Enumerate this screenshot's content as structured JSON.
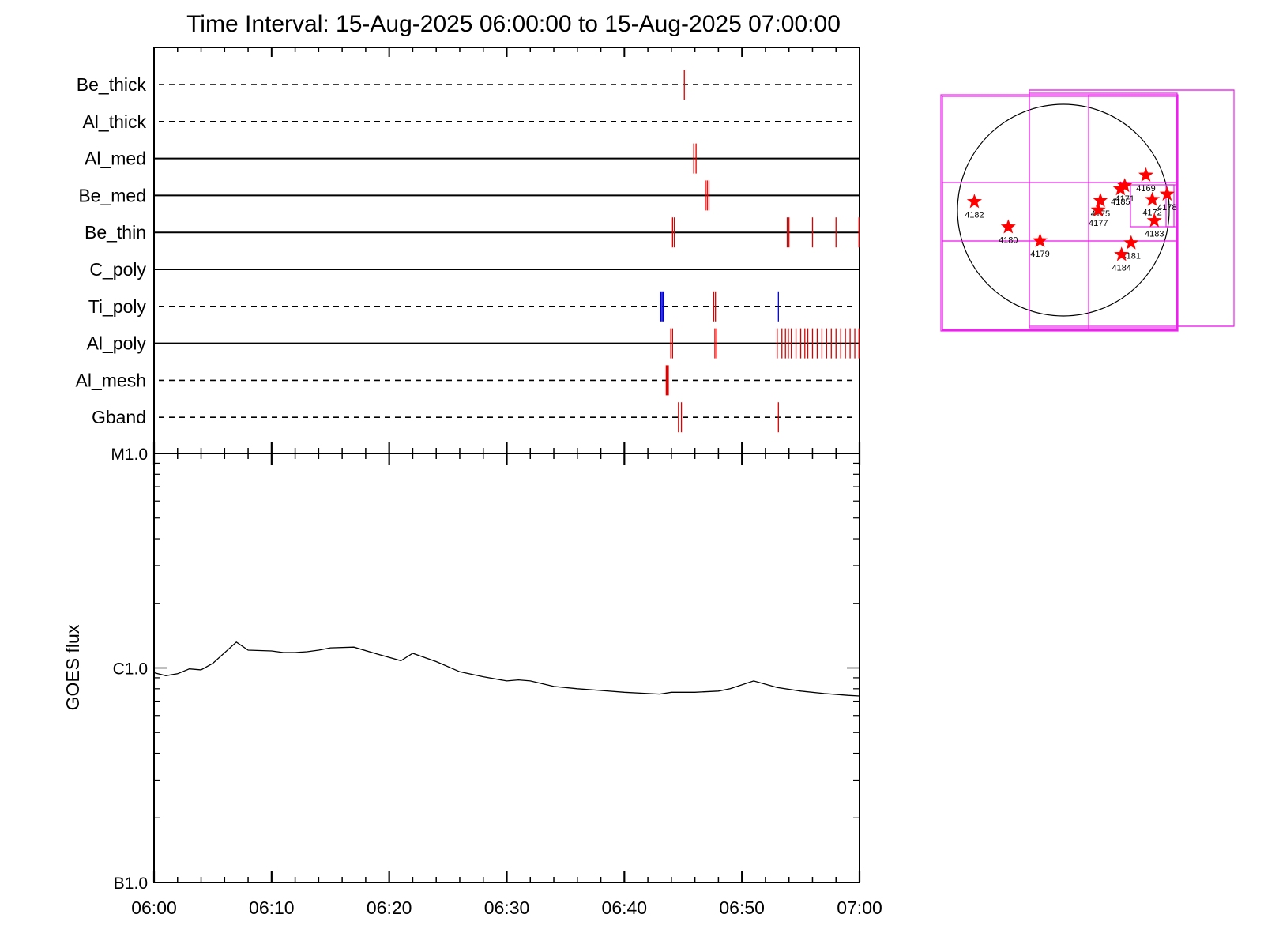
{
  "header": {
    "title": "Time Interval: 15-Aug-2025 06:00:00 to 15-Aug-2025 07:00:00"
  },
  "colors": {
    "axis": "#000000",
    "tick_red": "#dd0000",
    "tick_blue": "#0000cc",
    "box": "#ee22ee",
    "star": "#ff0000",
    "curve": "#000000"
  },
  "chart_data": [
    {
      "type": "timeline",
      "x_range_min": [
        0,
        60
      ],
      "x_tick_labels": [
        "06:00",
        "06:10",
        "06:20",
        "06:30",
        "06:40",
        "06:50",
        "07:00"
      ],
      "rows": [
        {
          "label": "Be_thick",
          "style": "dashed",
          "events": [
            {
              "t": 45.1,
              "w": 1,
              "color": "red"
            }
          ]
        },
        {
          "label": "Al_thick",
          "style": "dashed",
          "events": []
        },
        {
          "label": "Al_med",
          "style": "solid",
          "events": [
            {
              "t": 45.9,
              "w": 1,
              "color": "red"
            },
            {
              "t": 46.1,
              "w": 1,
              "color": "red"
            }
          ]
        },
        {
          "label": "Be_med",
          "style": "solid",
          "events": [
            {
              "t": 46.9,
              "w": 1,
              "color": "red"
            },
            {
              "t": 47.05,
              "w": 1,
              "color": "red"
            },
            {
              "t": 47.2,
              "w": 1,
              "color": "red"
            }
          ]
        },
        {
          "label": "Be_thin",
          "style": "solid",
          "events": [
            {
              "t": 44.1,
              "w": 1,
              "color": "red"
            },
            {
              "t": 44.25,
              "w": 1,
              "color": "red"
            },
            {
              "t": 53.85,
              "w": 1,
              "color": "red"
            },
            {
              "t": 54.0,
              "w": 1,
              "color": "red"
            },
            {
              "t": 56.0,
              "w": 1,
              "color": "red"
            },
            {
              "t": 58.0,
              "w": 1,
              "color": "red"
            },
            {
              "t": 59.95,
              "w": 1,
              "color": "red"
            }
          ]
        },
        {
          "label": "C_poly",
          "style": "solid",
          "events": []
        },
        {
          "label": "Ti_poly",
          "style": "dashed",
          "events": [
            {
              "t": 43.1,
              "w": 2,
              "color": "blue"
            },
            {
              "t": 43.3,
              "w": 2,
              "color": "blue"
            },
            {
              "t": 47.6,
              "w": 1,
              "color": "red"
            },
            {
              "t": 47.75,
              "w": 1,
              "color": "red"
            },
            {
              "t": 53.1,
              "w": 1,
              "color": "blue"
            }
          ]
        },
        {
          "label": "Al_poly",
          "style": "solid",
          "events": [
            {
              "t": 43.95,
              "w": 1,
              "color": "red"
            },
            {
              "t": 44.1,
              "w": 1,
              "color": "red"
            },
            {
              "t": 47.7,
              "w": 1,
              "color": "red"
            },
            {
              "t": 47.85,
              "w": 1,
              "color": "red"
            },
            {
              "t": 53.0,
              "w": 1,
              "color": "red"
            },
            {
              "t": 53.4,
              "w": 1,
              "color": "red"
            },
            {
              "t": 53.7,
              "w": 1,
              "color": "red"
            },
            {
              "t": 53.95,
              "w": 1,
              "color": "red"
            },
            {
              "t": 54.2,
              "w": 1,
              "color": "red"
            },
            {
              "t": 54.6,
              "w": 1,
              "color": "red"
            },
            {
              "t": 55.0,
              "w": 1,
              "color": "red"
            },
            {
              "t": 55.35,
              "w": 1,
              "color": "red"
            },
            {
              "t": 55.6,
              "w": 1,
              "color": "red"
            },
            {
              "t": 56.0,
              "w": 1,
              "color": "red"
            },
            {
              "t": 56.4,
              "w": 1,
              "color": "red"
            },
            {
              "t": 56.8,
              "w": 1,
              "color": "red"
            },
            {
              "t": 57.2,
              "w": 1,
              "color": "red"
            },
            {
              "t": 57.6,
              "w": 1,
              "color": "red"
            },
            {
              "t": 58.0,
              "w": 1,
              "color": "red"
            },
            {
              "t": 58.4,
              "w": 1,
              "color": "red"
            },
            {
              "t": 58.8,
              "w": 1,
              "color": "red"
            },
            {
              "t": 59.2,
              "w": 1,
              "color": "red"
            },
            {
              "t": 59.6,
              "w": 1,
              "color": "red"
            },
            {
              "t": 59.95,
              "w": 1,
              "color": "red"
            }
          ]
        },
        {
          "label": "Al_mesh",
          "style": "dashed",
          "events": [
            {
              "t": 43.65,
              "w": 3,
              "color": "red"
            }
          ]
        },
        {
          "label": "Gband",
          "style": "dashed",
          "events": [
            {
              "t": 44.6,
              "w": 1,
              "color": "red"
            },
            {
              "t": 44.85,
              "w": 1,
              "color": "red"
            },
            {
              "t": 53.1,
              "w": 1,
              "color": "red"
            }
          ]
        }
      ]
    },
    {
      "type": "line",
      "ylabel": "GOES flux",
      "y_scale": "log",
      "ylim": [
        1e-07,
        1e-05
      ],
      "y_tick_labels": [
        {
          "value": 1e-05,
          "label": "M1.0"
        },
        {
          "value": 1e-06,
          "label": "C1.0"
        },
        {
          "value": 1e-07,
          "label": "B1.0"
        }
      ],
      "x_tick_labels": [
        "06:00",
        "06:10",
        "06:20",
        "06:30",
        "06:40",
        "06:50",
        "07:00"
      ],
      "x": [
        0,
        1,
        2,
        3,
        4,
        5,
        7,
        8,
        10,
        11,
        12,
        13,
        14,
        15,
        17,
        19,
        21,
        22,
        24,
        26,
        28,
        30,
        31,
        32,
        34,
        36,
        38,
        40,
        42,
        43,
        44,
        46,
        48,
        49,
        51,
        53,
        55,
        57,
        59,
        60
      ],
      "series": [
        {
          "values": [
            9.5e-07,
            9.2e-07,
            9.4e-07,
            9.9e-07,
            9.8e-07,
            1.05e-06,
            1.32e-06,
            1.21e-06,
            1.2e-06,
            1.18e-06,
            1.18e-06,
            1.19e-06,
            1.21e-06,
            1.24e-06,
            1.25e-06,
            1.16e-06,
            1.08e-06,
            1.17e-06,
            1.07e-06,
            9.6e-07,
            9.1e-07,
            8.7e-07,
            8.8e-07,
            8.7e-07,
            8.2e-07,
            8e-07,
            7.85e-07,
            7.7e-07,
            7.6e-07,
            7.55e-07,
            7.7e-07,
            7.7e-07,
            7.8e-07,
            8e-07,
            8.7e-07,
            8.1e-07,
            7.8e-07,
            7.6e-07,
            7.45e-07,
            7.4e-07
          ]
        }
      ]
    },
    {
      "type": "scatter",
      "stars": [
        {
          "label": "4182",
          "x": -0.84,
          "y": 0.08
        },
        {
          "label": "4180",
          "x": -0.52,
          "y": -0.16
        },
        {
          "label": "4179",
          "x": -0.22,
          "y": -0.29
        },
        {
          "label": "4175",
          "x": 0.35,
          "y": 0.09
        },
        {
          "label": "4177",
          "x": 0.33,
          "y": 0.0
        },
        {
          "label": "4185",
          "x": 0.54,
          "y": 0.2
        },
        {
          "label": "4171",
          "x": 0.58,
          "y": 0.23
        },
        {
          "label": "4169",
          "x": 0.78,
          "y": 0.33
        },
        {
          "label": "4172",
          "x": 0.84,
          "y": 0.1
        },
        {
          "label": "4178",
          "x": 0.98,
          "y": 0.15
        },
        {
          "label": "4183",
          "x": 0.86,
          "y": -0.1
        },
        {
          "label": "4181",
          "x": 0.64,
          "y": -0.31
        },
        {
          "label": "4184",
          "x": 0.55,
          "y": -0.42
        }
      ]
    }
  ]
}
